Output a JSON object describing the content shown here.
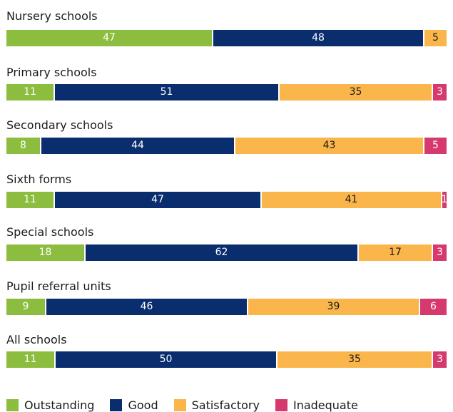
{
  "chart_data": {
    "type": "bar",
    "orientation": "horizontal",
    "stacked": true,
    "categories": [
      "Nursery schools",
      "Primary schools",
      "Secondary schools",
      "Sixth forms",
      "Special schools",
      "Pupil referral units",
      "All schools"
    ],
    "series": [
      {
        "name": "Outstanding",
        "color": "#8cbd3f",
        "values": [
          47,
          11,
          8,
          11,
          18,
          9,
          11
        ]
      },
      {
        "name": "Good",
        "color": "#0a2d6e",
        "values": [
          48,
          51,
          44,
          47,
          62,
          46,
          50
        ]
      },
      {
        "name": "Satisfactory",
        "color": "#fbb64b",
        "values": [
          5,
          35,
          43,
          41,
          17,
          39,
          35
        ]
      },
      {
        "name": "Inadequate",
        "color": "#d5396e",
        "values": [
          0,
          3,
          5,
          1,
          3,
          6,
          3
        ]
      }
    ],
    "legend_position": "bottom-left",
    "grid": false
  }
}
